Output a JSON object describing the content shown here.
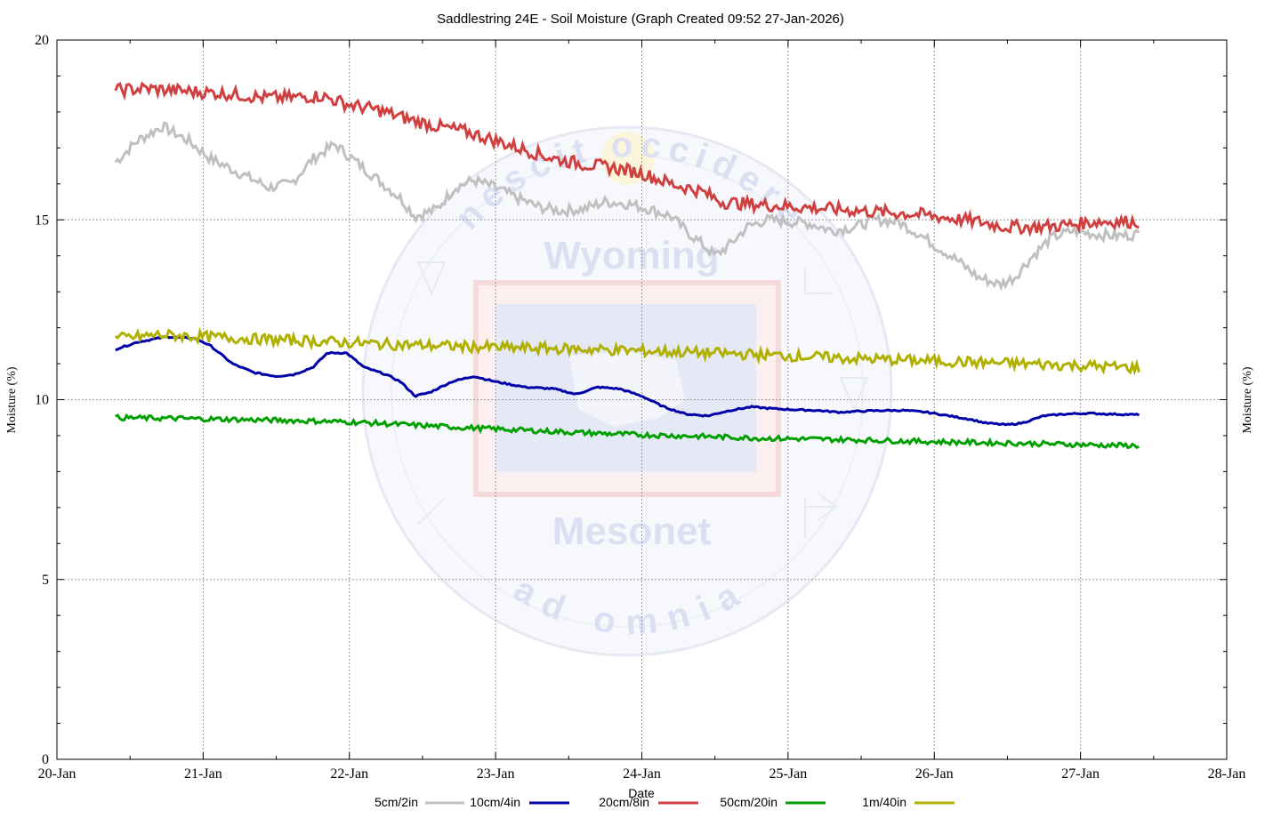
{
  "chart_data": {
    "type": "line",
    "title": "Saddlestring 24E - Soil Moisture (Graph Created 09:52 27-Jan-2026)",
    "xlabel": "Date",
    "ylabel": "Moisture (%)",
    "ylabel_right": "Moisture (%)",
    "xlim": [
      0,
      8
    ],
    "ylim": [
      0,
      20
    ],
    "x_ticks": [
      {
        "x": 0,
        "label": "20-Jan"
      },
      {
        "x": 1,
        "label": "21-Jan"
      },
      {
        "x": 2,
        "label": "22-Jan"
      },
      {
        "x": 3,
        "label": "23-Jan"
      },
      {
        "x": 4,
        "label": "24-Jan"
      },
      {
        "x": 5,
        "label": "25-Jan"
      },
      {
        "x": 6,
        "label": "26-Jan"
      },
      {
        "x": 7,
        "label": "27-Jan"
      },
      {
        "x": 8,
        "label": "28-Jan"
      }
    ],
    "y_ticks": [
      {
        "y": 0,
        "label": "0"
      },
      {
        "y": 5,
        "label": "5"
      },
      {
        "y": 10,
        "label": "10"
      },
      {
        "y": 15,
        "label": "15"
      },
      {
        "y": 20,
        "label": "20"
      }
    ],
    "x_units": "days since 20-Jan 00:00",
    "grid": true,
    "legend_position": "bottom",
    "series": [
      {
        "name": "5cm/2in",
        "color": "#c0c0c0",
        "x": [
          0.4,
          0.55,
          0.72,
          0.9,
          1.05,
          1.25,
          1.45,
          1.6,
          1.75,
          1.9,
          2.05,
          2.2,
          2.35,
          2.45,
          2.6,
          2.72,
          2.85,
          3.0,
          3.15,
          3.3,
          3.45,
          3.6,
          3.75,
          3.9,
          4.05,
          4.2,
          4.3,
          4.42,
          4.5,
          4.6,
          4.72,
          4.85,
          5.0,
          5.15,
          5.3,
          5.45,
          5.6,
          5.75,
          5.9,
          6.0,
          6.15,
          6.3,
          6.45,
          6.55,
          6.65,
          6.8,
          6.95,
          7.1,
          7.25,
          7.4
        ],
        "y": [
          16.6,
          17.2,
          17.6,
          17.2,
          16.7,
          16.3,
          15.9,
          16.0,
          16.7,
          17.1,
          16.6,
          16.1,
          15.6,
          15.1,
          15.3,
          15.9,
          16.1,
          15.9,
          15.6,
          15.35,
          15.25,
          15.3,
          15.5,
          15.45,
          15.3,
          15.1,
          14.7,
          14.3,
          14.0,
          14.3,
          14.8,
          15.0,
          14.95,
          14.9,
          14.7,
          14.8,
          15.0,
          14.95,
          14.6,
          14.3,
          13.9,
          13.4,
          13.2,
          13.4,
          13.9,
          14.5,
          14.7,
          14.6,
          14.55,
          14.6
        ]
      },
      {
        "name": "10cm/4in",
        "color": "#0000a8",
        "x": [
          0.4,
          0.55,
          0.75,
          0.95,
          1.05,
          1.2,
          1.35,
          1.5,
          1.62,
          1.75,
          1.85,
          1.98,
          2.1,
          2.25,
          2.35,
          2.45,
          2.55,
          2.7,
          2.85,
          3.0,
          3.2,
          3.4,
          3.55,
          3.7,
          3.85,
          4.0,
          4.15,
          4.3,
          4.45,
          4.6,
          4.75,
          4.9,
          5.05,
          5.2,
          5.35,
          5.5,
          5.65,
          5.8,
          5.95,
          6.1,
          6.25,
          6.35,
          6.5,
          6.6,
          6.75,
          6.9,
          7.05,
          7.2,
          7.4
        ],
        "y": [
          11.4,
          11.6,
          11.75,
          11.7,
          11.5,
          11.0,
          10.75,
          10.65,
          10.7,
          10.9,
          11.3,
          11.3,
          10.9,
          10.7,
          10.5,
          10.1,
          10.2,
          10.5,
          10.65,
          10.5,
          10.35,
          10.3,
          10.15,
          10.35,
          10.3,
          10.1,
          9.8,
          9.6,
          9.55,
          9.7,
          9.8,
          9.75,
          9.72,
          9.7,
          9.65,
          9.68,
          9.7,
          9.7,
          9.65,
          9.55,
          9.45,
          9.35,
          9.3,
          9.35,
          9.55,
          9.6,
          9.62,
          9.6,
          9.58
        ]
      },
      {
        "name": "20cm/8in",
        "color": "#d04040",
        "x": [
          0.4,
          0.6,
          0.8,
          1.0,
          1.2,
          1.4,
          1.6,
          1.8,
          2.0,
          2.2,
          2.4,
          2.6,
          2.8,
          3.0,
          3.2,
          3.4,
          3.6,
          3.8,
          4.0,
          4.2,
          4.4,
          4.55,
          4.7,
          4.9,
          5.1,
          5.3,
          5.5,
          5.7,
          5.9,
          6.1,
          6.3,
          6.5,
          6.7,
          6.9,
          7.1,
          7.25,
          7.4
        ],
        "y": [
          18.6,
          18.65,
          18.6,
          18.55,
          18.5,
          18.4,
          18.4,
          18.45,
          18.2,
          18.05,
          17.8,
          17.6,
          17.45,
          17.2,
          16.95,
          16.7,
          16.55,
          16.45,
          16.3,
          16.0,
          15.8,
          15.5,
          15.45,
          15.4,
          15.35,
          15.3,
          15.25,
          15.2,
          15.15,
          15.05,
          14.95,
          14.8,
          14.8,
          14.85,
          14.95,
          14.95,
          14.95
        ]
      },
      {
        "name": "50cm/20in",
        "color": "#00a000",
        "x": [
          0.4,
          0.8,
          1.2,
          1.6,
          2.0,
          2.4,
          2.8,
          3.2,
          3.6,
          4.0,
          4.4,
          4.8,
          5.2,
          5.6,
          6.0,
          6.4,
          6.8,
          7.2,
          7.4
        ],
        "y": [
          9.5,
          9.48,
          9.45,
          9.42,
          9.38,
          9.3,
          9.22,
          9.15,
          9.08,
          9.02,
          8.98,
          8.93,
          8.9,
          8.87,
          8.83,
          8.8,
          8.77,
          8.73,
          8.72
        ]
      },
      {
        "name": "1m/40in",
        "color": "#b0b000",
        "x": [
          0.4,
          0.7,
          1.0,
          1.4,
          1.8,
          2.2,
          2.6,
          3.0,
          3.4,
          3.8,
          4.2,
          4.6,
          5.0,
          5.4,
          5.8,
          6.2,
          6.6,
          7.0,
          7.4
        ],
        "y": [
          11.7,
          11.8,
          11.75,
          11.68,
          11.62,
          11.55,
          11.5,
          11.45,
          11.42,
          11.38,
          11.33,
          11.28,
          11.22,
          11.15,
          11.1,
          11.05,
          11.0,
          10.95,
          10.88
        ]
      }
    ]
  },
  "watermark": {
    "arc_top": "nescit occidere",
    "arc_bottom": "ad omnia",
    "name_top": "Wyoming",
    "name_bottom": "Mesonet"
  }
}
